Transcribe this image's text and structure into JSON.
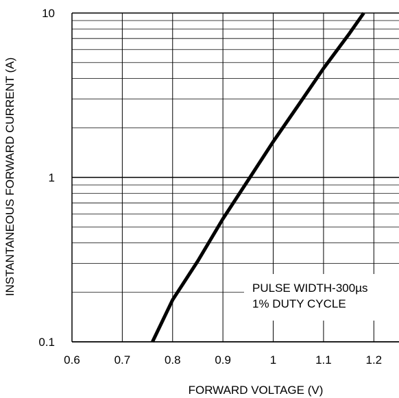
{
  "chart_data": {
    "type": "line",
    "title": "",
    "xlabel": "FORWARD VOLTAGE (V)",
    "ylabel": "INSTANTANEOUS FORWARD CURRENT (A)",
    "xlim": [
      0.6,
      1.25
    ],
    "ylim": [
      0.1,
      10
    ],
    "yscale": "log",
    "xticks": [
      0.6,
      0.7,
      0.8,
      0.9,
      1.0,
      1.1,
      1.2
    ],
    "xtick_labels": [
      "0.6",
      "0.7",
      "0.8",
      "0.9",
      "1",
      "1.1",
      "1.2"
    ],
    "yticks": [
      0.1,
      1,
      10
    ],
    "ytick_labels": [
      "0.1",
      "1",
      "10"
    ],
    "grid": true,
    "series": [
      {
        "x": [
          0.76,
          0.8,
          0.85,
          0.9,
          0.95,
          1.0,
          1.05,
          1.1,
          1.15,
          1.18
        ],
        "y": [
          0.1,
          0.18,
          0.31,
          0.56,
          0.96,
          1.65,
          2.75,
          4.6,
          7.4,
          10
        ]
      }
    ],
    "annotations": [
      "PULSE WIDTH-300µs",
      "1% DUTY CYCLE"
    ],
    "colors": {
      "line": "#000000",
      "grid": "#000000",
      "background": "#ffffff"
    }
  }
}
